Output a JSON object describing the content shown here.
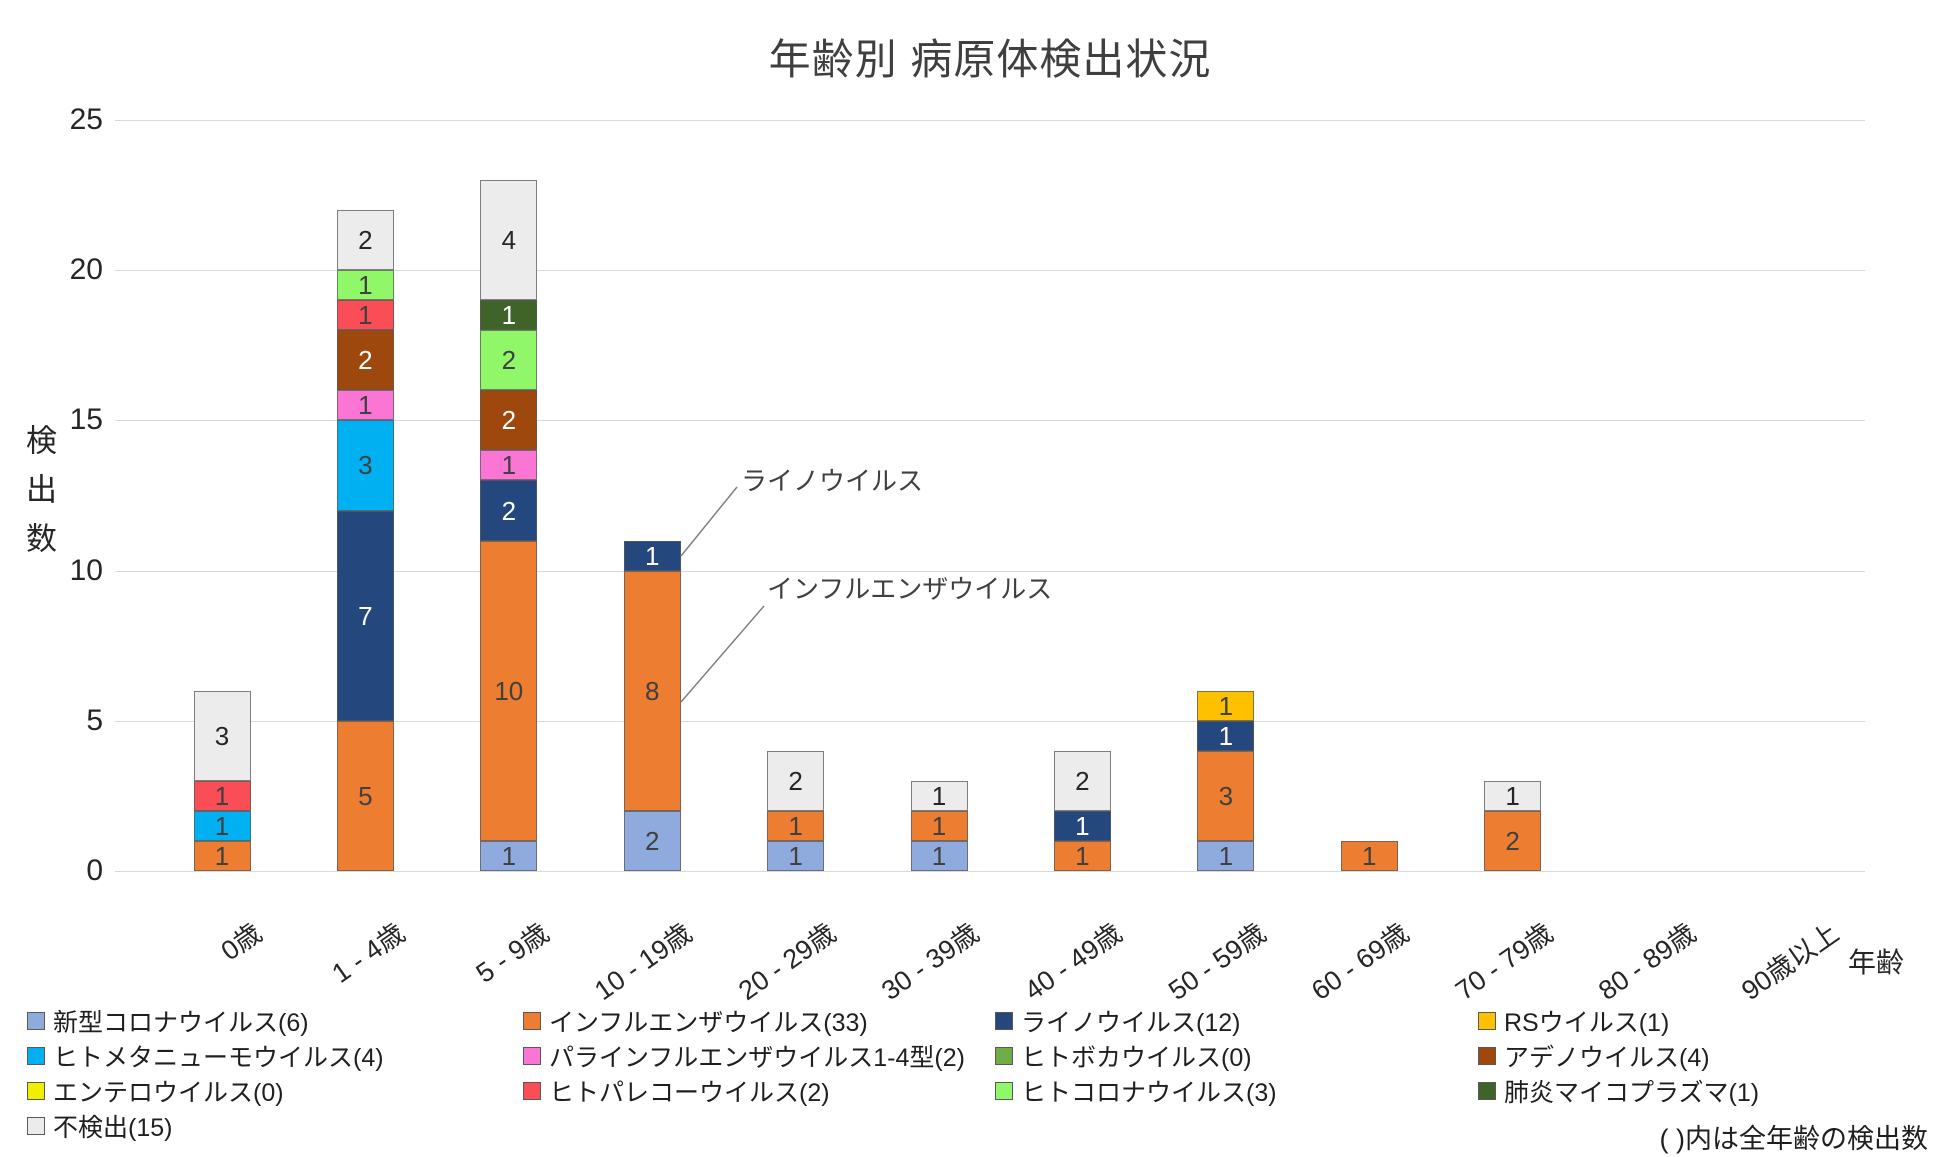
{
  "title": "年齢別 病原体検出状況",
  "footnote": "( )内は全年齢の検出数",
  "y_axis": {
    "title": "検出数",
    "ticks": [
      0,
      5,
      10,
      15,
      20,
      25
    ]
  },
  "x_axis": {
    "title": "年齢"
  },
  "annotations": [
    {
      "text": "ライノウイルス"
    },
    {
      "text": "インフルエンザウイルス"
    }
  ],
  "colors": {
    "grid": "#d9d9d9",
    "segment_border": "#595959",
    "text_dark": "#404040",
    "text_white": "#ffffff"
  },
  "chart_data": {
    "type": "bar",
    "stacked": true,
    "title": "年齢別 病原体検出状況",
    "xlabel": "年齢",
    "ylabel": "検出数",
    "ylim": [
      0,
      25
    ],
    "grid": true,
    "legend_position": "bottom",
    "categories": [
      "0歳",
      "1 - 4歳",
      "5 - 9歳",
      "10 - 19歳",
      "20 - 29歳",
      "30 - 39歳",
      "40 - 49歳",
      "50 - 59歳",
      "60 - 69歳",
      "70 - 79歳",
      "80 - 89歳",
      "90歳以上"
    ],
    "series": [
      {
        "name": "新型コロナウイルス",
        "label": "新型コロナウイルス(6)",
        "total": 6,
        "color": "#8FAADC",
        "text_color": "#404040",
        "values": [
          0,
          0,
          1,
          2,
          1,
          1,
          0,
          1,
          0,
          0,
          0,
          0
        ]
      },
      {
        "name": "インフルエンザウイルス",
        "label": "インフルエンザウイルス(33)",
        "total": 33,
        "color": "#ED7D31",
        "text_color": "#404040",
        "values": [
          1,
          5,
          10,
          8,
          1,
          1,
          1,
          3,
          1,
          2,
          0,
          0
        ]
      },
      {
        "name": "ライノウイルス",
        "label": "ライノウイルス(12)",
        "total": 12,
        "color": "#24477D",
        "text_color": "#ffffff",
        "values": [
          0,
          7,
          2,
          1,
          0,
          0,
          1,
          1,
          0,
          0,
          0,
          0
        ]
      },
      {
        "name": "RSウイルス",
        "label": "RSウイルス(1)",
        "total": 1,
        "color": "#FFC000",
        "text_color": "#404040",
        "values": [
          0,
          0,
          0,
          0,
          0,
          0,
          0,
          1,
          0,
          0,
          0,
          0
        ]
      },
      {
        "name": "ヒトメタニューモウイルス",
        "label": "ヒトメタニューモウイルス(4)",
        "total": 4,
        "color": "#00B0F0",
        "text_color": "#404040",
        "values": [
          1,
          3,
          0,
          0,
          0,
          0,
          0,
          0,
          0,
          0,
          0,
          0
        ]
      },
      {
        "name": "パラインフルエンザウイルス1-4型",
        "label": "パラインフルエンザウイルス1-4型(2)",
        "total": 2,
        "color": "#FB76D4",
        "text_color": "#404040",
        "values": [
          0,
          1,
          1,
          0,
          0,
          0,
          0,
          0,
          0,
          0,
          0,
          0
        ]
      },
      {
        "name": "ヒトボカウイルス",
        "label": "ヒトボカウイルス(0)",
        "total": 0,
        "color": "#70AD47",
        "text_color": "#404040",
        "values": [
          0,
          0,
          0,
          0,
          0,
          0,
          0,
          0,
          0,
          0,
          0,
          0
        ]
      },
      {
        "name": "アデノウイルス",
        "label": "アデノウイルス(4)",
        "total": 4,
        "color": "#9E480E",
        "text_color": "#ffffff",
        "values": [
          0,
          2,
          2,
          0,
          0,
          0,
          0,
          0,
          0,
          0,
          0,
          0
        ]
      },
      {
        "name": "エンテロウイルス",
        "label": "エンテロウイルス(0)",
        "total": 0,
        "color": "#EFEF00",
        "text_color": "#404040",
        "values": [
          0,
          0,
          0,
          0,
          0,
          0,
          0,
          0,
          0,
          0,
          0,
          0
        ]
      },
      {
        "name": "ヒトパレコーウイルス",
        "label": "ヒトパレコーウイルス(2)",
        "total": 2,
        "color": "#FA4D56",
        "text_color": "#404040",
        "values": [
          1,
          1,
          0,
          0,
          0,
          0,
          0,
          0,
          0,
          0,
          0,
          0
        ]
      },
      {
        "name": "ヒトコロナウイルス",
        "label": "ヒトコロナウイルス(3)",
        "total": 3,
        "color": "#90F768",
        "text_color": "#404040",
        "values": [
          0,
          1,
          2,
          0,
          0,
          0,
          0,
          0,
          0,
          0,
          0,
          0
        ]
      },
      {
        "name": "肺炎マイコプラズマ",
        "label": "肺炎マイコプラズマ(1)",
        "total": 1,
        "color": "#40632A",
        "text_color": "#ffffff",
        "values": [
          0,
          0,
          1,
          0,
          0,
          0,
          0,
          0,
          0,
          0,
          0,
          0
        ]
      },
      {
        "name": "不検出",
        "label": "不検出(15)",
        "total": 15,
        "color": "#ECECEC",
        "text_color": "#262626",
        "values": [
          3,
          2,
          4,
          0,
          2,
          1,
          2,
          0,
          0,
          1,
          0,
          0
        ]
      }
    ]
  },
  "legend": {
    "columns": [
      [
        0,
        4,
        8,
        12
      ],
      [
        1,
        5,
        9
      ],
      [
        2,
        6,
        10
      ],
      [
        3,
        7,
        11
      ]
    ]
  }
}
